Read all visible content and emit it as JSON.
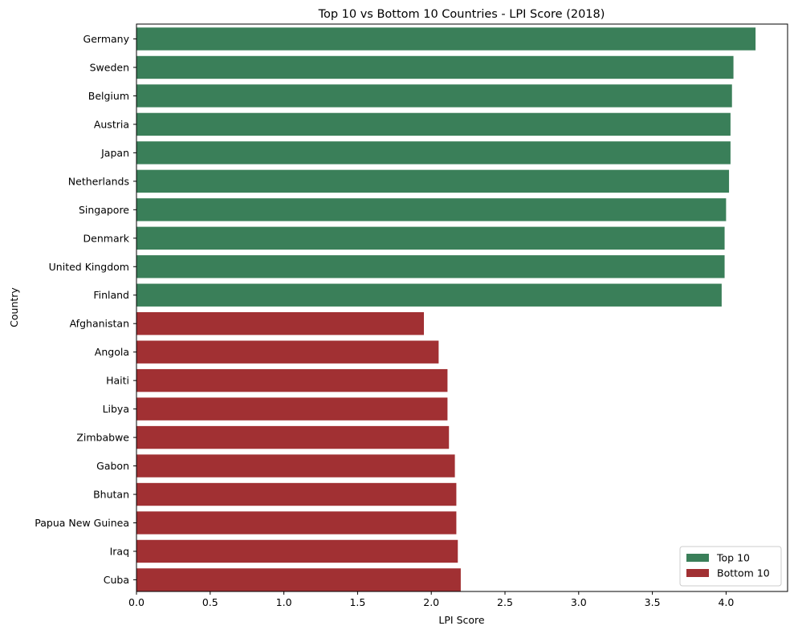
{
  "chart_data": {
    "type": "bar",
    "orientation": "horizontal",
    "title": "Top 10 vs Bottom 10 Countries - LPI Score (2018)",
    "xlabel": "LPI Score",
    "ylabel": "Country",
    "xlim": [
      0,
      4.2
    ],
    "xticks": [
      "0.0",
      "0.5",
      "1.0",
      "1.5",
      "2.0",
      "2.5",
      "3.0",
      "3.5",
      "4.0"
    ],
    "grid": false,
    "legend_position": "bottom-right",
    "categories": [
      "Germany",
      "Sweden",
      "Belgium",
      "Austria",
      "Japan",
      "Netherlands",
      "Singapore",
      "Denmark",
      "United Kingdom",
      "Finland",
      "Afghanistan",
      "Angola",
      "Haiti",
      "Libya",
      "Zimbabwe",
      "Gabon",
      "Bhutan",
      "Papua New Guinea",
      "Iraq",
      "Cuba"
    ],
    "values": [
      4.2,
      4.05,
      4.04,
      4.03,
      4.03,
      4.02,
      4.0,
      3.99,
      3.99,
      3.97,
      1.95,
      2.05,
      2.11,
      2.11,
      2.12,
      2.16,
      2.17,
      2.17,
      2.18,
      2.2
    ],
    "groups": [
      "Top 10",
      "Top 10",
      "Top 10",
      "Top 10",
      "Top 10",
      "Top 10",
      "Top 10",
      "Top 10",
      "Top 10",
      "Top 10",
      "Bottom 10",
      "Bottom 10",
      "Bottom 10",
      "Bottom 10",
      "Bottom 10",
      "Bottom 10",
      "Bottom 10",
      "Bottom 10",
      "Bottom 10",
      "Bottom 10"
    ],
    "legend": [
      {
        "name": "Top 10",
        "color": "#3a7f59"
      },
      {
        "name": "Bottom 10",
        "color": "#a13033"
      }
    ]
  }
}
